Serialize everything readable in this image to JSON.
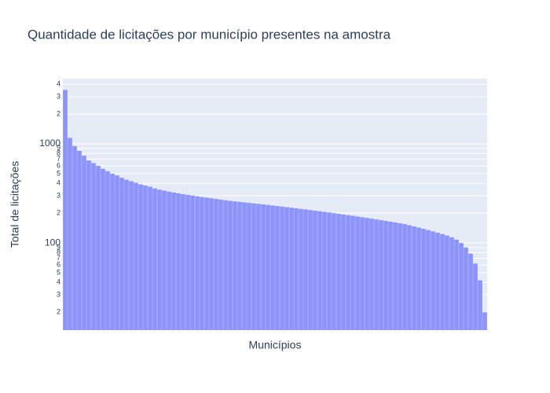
{
  "chart_data": {
    "type": "bar",
    "title": "Quantidade de licitações por município presentes na amostra",
    "xlabel": "Municípios",
    "ylabel": "Total de licitações",
    "log_y": true,
    "grid": true,
    "color": "#8c94f9",
    "ylim": [
      13.2,
      4560
    ],
    "yticks": [
      {
        "value": 20,
        "label": "2"
      },
      {
        "value": 30,
        "label": "3"
      },
      {
        "value": 40,
        "label": "4"
      },
      {
        "value": 50,
        "label": "5"
      },
      {
        "value": 60,
        "label": "6"
      },
      {
        "value": 70,
        "label": "7"
      },
      {
        "value": 80,
        "label": "8"
      },
      {
        "value": 90,
        "label": "9"
      },
      100,
      {
        "value": 200,
        "label": "2"
      },
      {
        "value": 300,
        "label": "3"
      },
      {
        "value": 400,
        "label": "4"
      },
      {
        "value": 500,
        "label": "5"
      },
      {
        "value": 600,
        "label": "6"
      },
      {
        "value": 700,
        "label": "7"
      },
      {
        "value": 800,
        "label": "8"
      },
      {
        "value": 900,
        "label": "9"
      },
      1000,
      {
        "value": 2000,
        "label": "2"
      },
      {
        "value": 3000,
        "label": "3"
      },
      {
        "value": 4000,
        "label": "4"
      }
    ],
    "categories": [
      null,
      null,
      null,
      null,
      null,
      null,
      null,
      null,
      null,
      null,
      null,
      null,
      null,
      null,
      null,
      null,
      null,
      null,
      null,
      null,
      null,
      null,
      null,
      null,
      null,
      null,
      null,
      null,
      null,
      null,
      null,
      null,
      null,
      null,
      null,
      null,
      null,
      null,
      null,
      null,
      null,
      null,
      null,
      null,
      null,
      null,
      null,
      null,
      null,
      null,
      null,
      null,
      null,
      null,
      null,
      null,
      null,
      null,
      null,
      null,
      null,
      null,
      null,
      null,
      null,
      null,
      null,
      null,
      null,
      null,
      null,
      null,
      null,
      null,
      null,
      null,
      null,
      null,
      null,
      null,
      null,
      null,
      null,
      null,
      null,
      null,
      null,
      null,
      null,
      null
    ],
    "values": [
      3500,
      1150,
      950,
      850,
      760,
      680,
      640,
      600,
      560,
      530,
      500,
      480,
      455,
      435,
      420,
      405,
      390,
      380,
      370,
      355,
      345,
      338,
      330,
      323,
      317,
      311,
      306,
      301,
      296,
      291,
      287,
      283,
      278,
      274,
      270,
      266,
      263,
      260,
      257,
      254,
      251,
      248,
      245,
      242,
      239,
      236,
      233,
      230,
      227,
      224,
      221,
      218,
      215,
      212,
      209,
      206,
      203,
      200,
      197,
      194,
      191,
      188,
      185,
      182,
      179,
      176,
      173,
      170,
      167,
      164,
      161,
      158,
      155,
      151,
      147,
      143,
      139,
      135,
      131,
      127,
      123,
      119,
      114,
      108,
      100,
      90,
      78,
      62,
      42,
      20
    ]
  }
}
